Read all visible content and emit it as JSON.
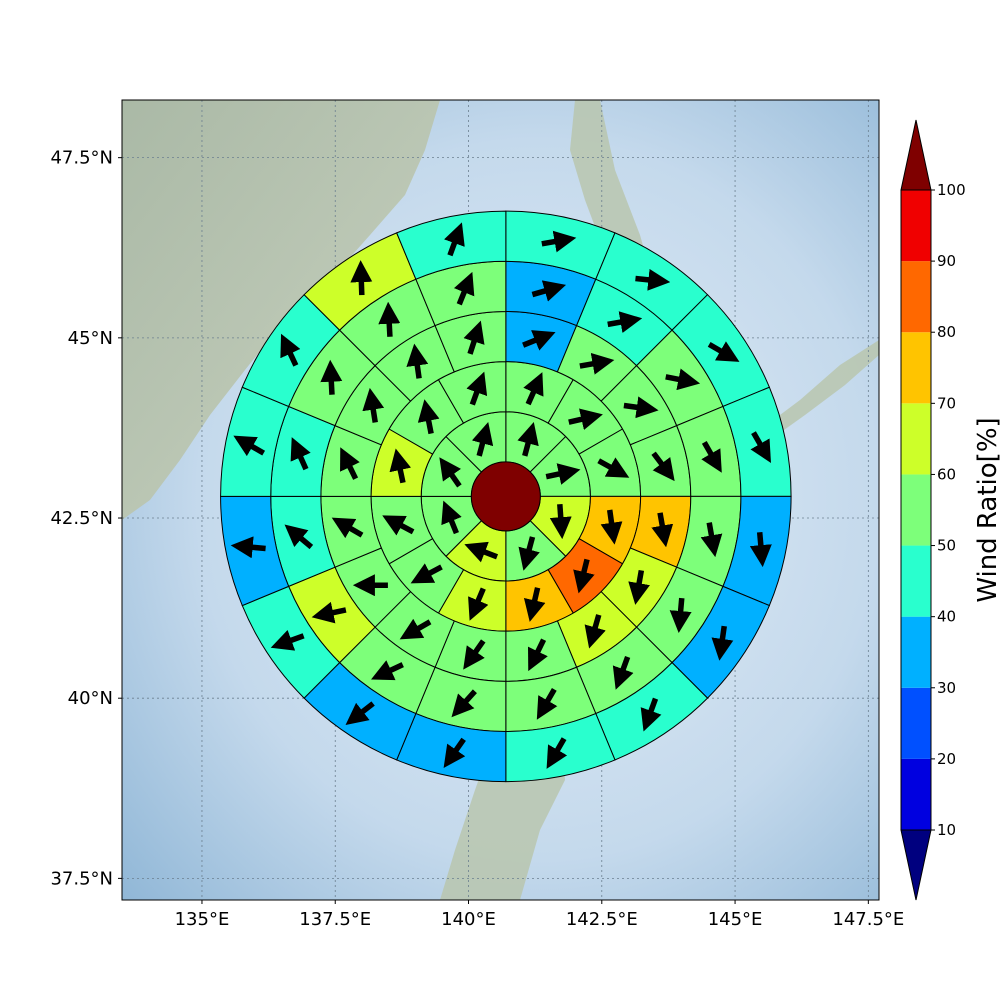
{
  "chart_data": {
    "type": "heatmap",
    "title": "",
    "projection": "polar sectors over map (lon/lat)",
    "x_axis": {
      "range": [
        133.5,
        147.7
      ],
      "ticks": [
        135,
        137.5,
        140,
        142.5,
        145,
        147.5
      ],
      "tick_labels": [
        "135°E",
        "137.5°E",
        "140°E",
        "142.5°E",
        "145°E",
        "147.5°E"
      ]
    },
    "y_axis": {
      "range": [
        37.2,
        48.3
      ],
      "ticks": [
        37.5,
        40,
        42.5,
        45,
        47.5
      ],
      "tick_labels": [
        "37.5°N",
        "40°N",
        "42.5°N",
        "45°N",
        "47.5°N"
      ]
    },
    "grid": true,
    "center": {
      "lon": 140.7,
      "lat": 42.8,
      "value": 100
    },
    "rings": [
      {
        "inner_deg": 0.55,
        "outer_deg": 1.35,
        "sectors": 8,
        "start_bearing": 0,
        "values": [
          58,
          58,
          63,
          56,
          63,
          57,
          56,
          58
        ],
        "wind_dir_deg": [
          15,
          78,
          176,
          195,
          291,
          338,
          325,
          15
        ]
      },
      {
        "inner_deg": 1.35,
        "outer_deg": 2.15,
        "sectors": 12,
        "start_bearing": 0,
        "values": [
          57,
          55,
          58,
          72,
          83,
          75,
          65,
          55,
          55,
          65,
          56,
          55
        ],
        "wind_dir_deg": [
          24,
          77,
          119,
          172,
          194,
          193,
          203,
          242,
          298,
          348,
          349,
          20
        ],
        "note": "ring 2 sector values listed clockwise from north"
      },
      {
        "inner_deg": 2.15,
        "outer_deg": 2.95,
        "sectors": 16,
        "start_bearing": 0,
        "values": [
          35,
          55,
          57,
          55,
          72,
          65,
          65,
          58,
          55,
          55,
          55,
          55,
          56,
          55,
          55,
          55
        ],
        "wind_dir_deg": [
          68,
          80,
          98,
          143,
          170,
          190,
          196,
          206,
          215,
          240,
          270,
          300,
          334,
          351,
          352,
          18
        ]
      },
      {
        "inner_deg": 2.95,
        "outer_deg": 3.75,
        "sectors": 16,
        "start_bearing": 0,
        "values": [
          35,
          45,
          55,
          55,
          56,
          55,
          55,
          55,
          55,
          55,
          65,
          45,
          45,
          55,
          55,
          56
        ],
        "wind_dir_deg": [
          74,
          80,
          101,
          150,
          170,
          185,
          200,
          210,
          222,
          245,
          258,
          310,
          336,
          357,
          357,
          22
        ]
      },
      {
        "inner_deg": 3.75,
        "outer_deg": 4.55,
        "sectors": 16,
        "start_bearing": 0,
        "values": [
          45,
          45,
          44,
          45,
          35,
          35,
          45,
          45,
          35,
          35,
          45,
          35,
          45,
          45,
          65,
          45
        ],
        "wind_dir_deg": [
          80,
          96,
          120,
          150,
          175,
          188,
          200,
          210,
          215,
          232,
          250,
          275,
          300,
          335,
          358,
          20
        ],
        "note": "outer ring colours follow the image"
      }
    ],
    "colorbar": {
      "label": "Wind Ratio[%]",
      "ticks": [
        10,
        20,
        30,
        40,
        50,
        60,
        70,
        80,
        90,
        100
      ],
      "levels": [
        0,
        10,
        20,
        30,
        40,
        50,
        60,
        70,
        80,
        90,
        100,
        110
      ],
      "colors": [
        "#00007f",
        "#0000e0",
        "#0050ff",
        "#00b0ff",
        "#29ffce",
        "#7dff7a",
        "#cdff29",
        "#ffc400",
        "#ff6800",
        "#f00000",
        "#7f0000"
      ],
      "extend": "both"
    }
  }
}
